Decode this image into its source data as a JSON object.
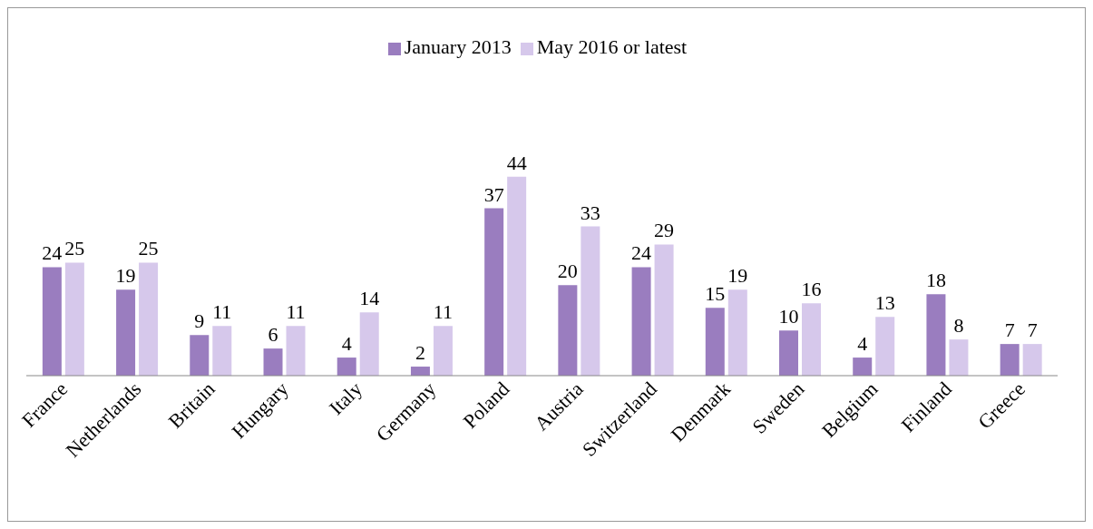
{
  "chart_data": {
    "type": "bar",
    "categories": [
      "France",
      "Netherlands",
      "Britain",
      "Hungary",
      "Italy",
      "Germany",
      "Poland",
      "Austria",
      "Switzerland",
      "Denmark",
      "Sweden",
      "Belgium",
      "Finland",
      "Greece"
    ],
    "series": [
      {
        "name": "January 2013",
        "color": "#9a7dbf",
        "values": [
          24,
          19,
          9,
          6,
          4,
          2,
          37,
          20,
          24,
          15,
          10,
          4,
          18,
          7
        ]
      },
      {
        "name": "May 2016 or latest",
        "color": "#d6c8eb",
        "values": [
          25,
          25,
          11,
          11,
          14,
          11,
          44,
          33,
          29,
          19,
          16,
          13,
          8,
          7
        ]
      }
    ],
    "data_labels": true,
    "legend": "top",
    "grid": false,
    "tick_labels": "x"
  }
}
